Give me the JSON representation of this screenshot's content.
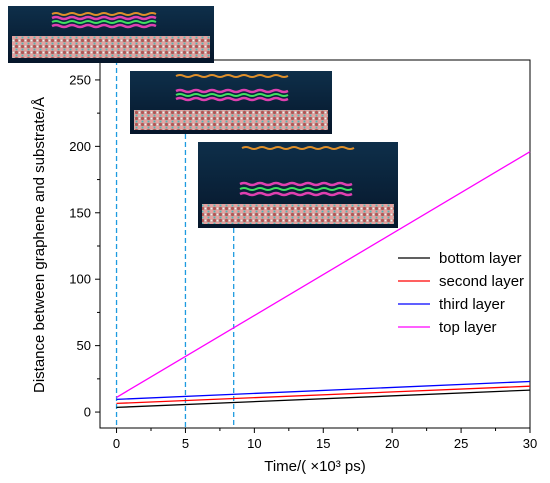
{
  "chart_data": {
    "type": "line",
    "title": "",
    "xlabel": "Time/( ×10³ ps)",
    "ylabel": "Distance between graphene and substrate/Å",
    "xlim": [
      -1.2,
      30
    ],
    "ylim": [
      -12,
      265
    ],
    "xticks": [
      0,
      5,
      10,
      15,
      20,
      25,
      30
    ],
    "yticks": [
      0,
      50,
      100,
      150,
      200,
      250
    ],
    "grid": false,
    "legend_position": "right",
    "series": [
      {
        "name": "bottom layer",
        "color": "#000000",
        "x": [
          0,
          30
        ],
        "y": [
          3.5,
          16.5
        ]
      },
      {
        "name": "second layer",
        "color": "#ff0000",
        "x": [
          0,
          30
        ],
        "y": [
          6.5,
          19.5
        ]
      },
      {
        "name": "third layer",
        "color": "#0000ff",
        "x": [
          0,
          30
        ],
        "y": [
          9.5,
          23
        ]
      },
      {
        "name": "top layer",
        "color": "#ff00ff",
        "x": [
          0,
          30
        ],
        "y": [
          11,
          196
        ]
      }
    ],
    "annotations": {
      "dashed_vlines_x": [
        0,
        5,
        8.5
      ],
      "snapshot_insets": [
        {
          "time": 0,
          "label_icon": "md-snapshot-t0"
        },
        {
          "time": 5,
          "label_icon": "md-snapshot-t5"
        },
        {
          "time": 8.5,
          "label_icon": "md-snapshot-t8_5"
        }
      ],
      "dashed_color": "#1e9be0"
    }
  }
}
